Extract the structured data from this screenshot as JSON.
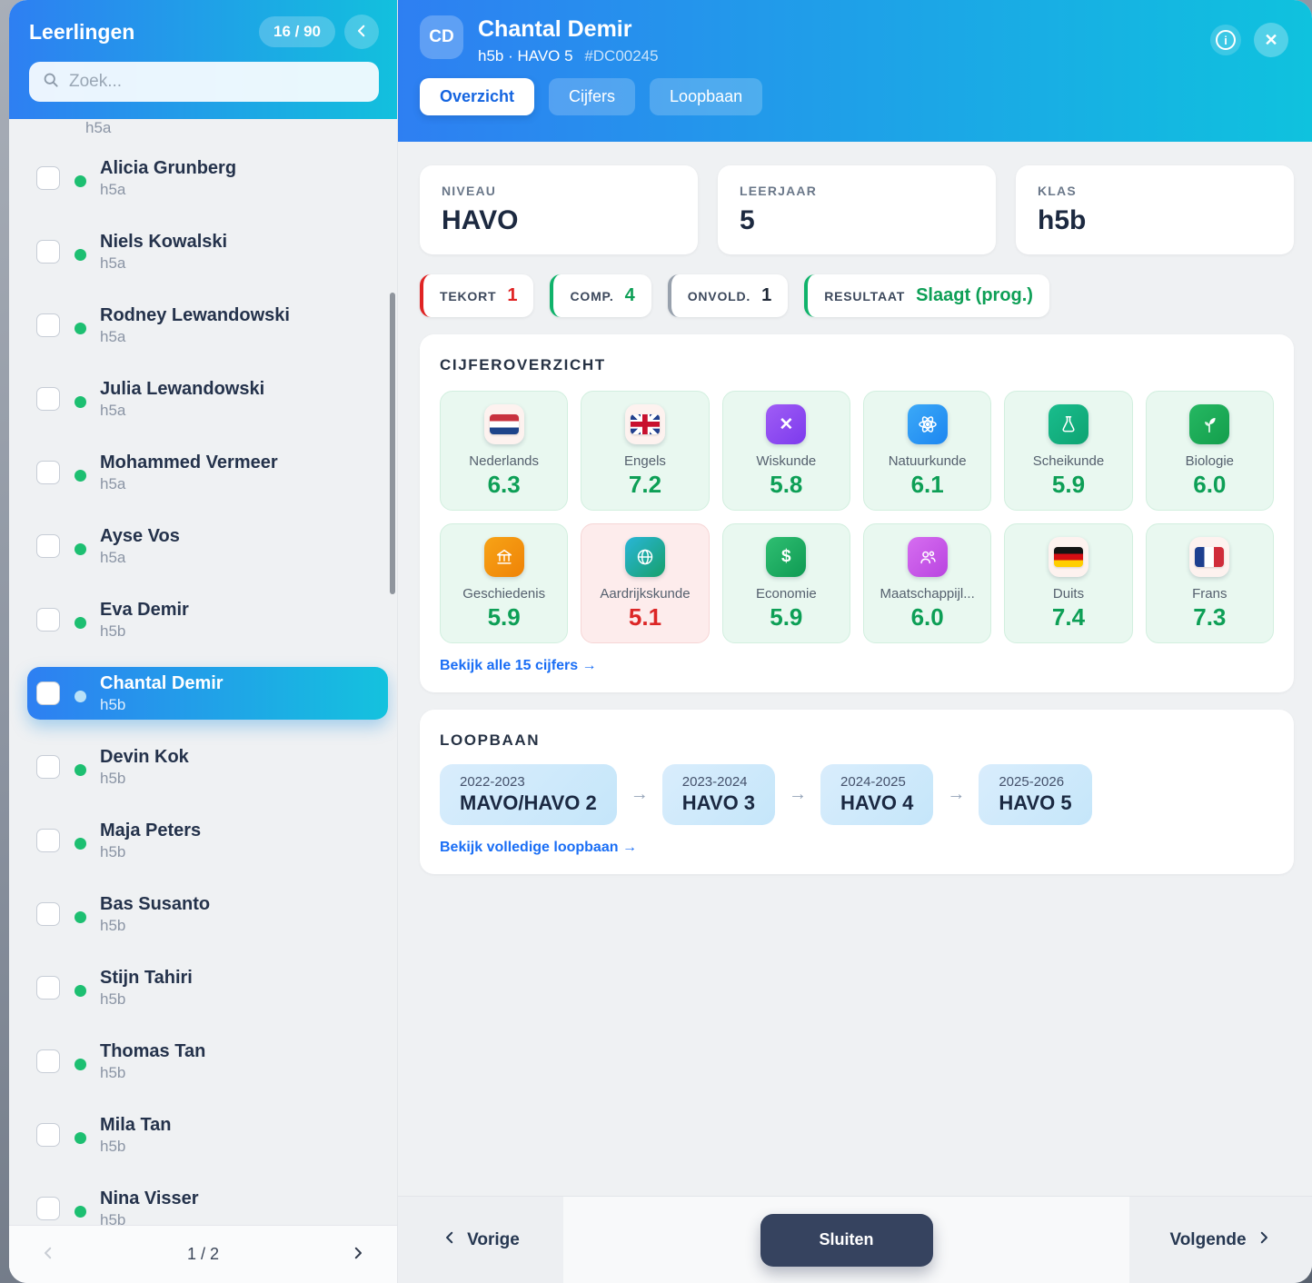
{
  "sidebar": {
    "title": "Leerlingen",
    "count": "16 / 90",
    "search_placeholder": "Zoek...",
    "partial_top_subtitle": "h5a",
    "students": [
      {
        "name": "Alicia Grunberg",
        "klas": "h5a",
        "selected": false
      },
      {
        "name": "Niels Kowalski",
        "klas": "h5a",
        "selected": false
      },
      {
        "name": "Rodney Lewandowski",
        "klas": "h5a",
        "selected": false
      },
      {
        "name": "Julia Lewandowski",
        "klas": "h5a",
        "selected": false
      },
      {
        "name": "Mohammed Vermeer",
        "klas": "h5a",
        "selected": false
      },
      {
        "name": "Ayse Vos",
        "klas": "h5a",
        "selected": false
      },
      {
        "name": "Eva Demir",
        "klas": "h5b",
        "selected": false
      },
      {
        "name": "Chantal Demir",
        "klas": "h5b",
        "selected": true
      },
      {
        "name": "Devin Kok",
        "klas": "h5b",
        "selected": false
      },
      {
        "name": "Maja Peters",
        "klas": "h5b",
        "selected": false
      },
      {
        "name": "Bas Susanto",
        "klas": "h5b",
        "selected": false
      },
      {
        "name": "Stijn Tahiri",
        "klas": "h5b",
        "selected": false
      },
      {
        "name": "Thomas Tan",
        "klas": "h5b",
        "selected": false
      },
      {
        "name": "Mila Tan",
        "klas": "h5b",
        "selected": false
      },
      {
        "name": "Nina Visser",
        "klas": "h5b",
        "selected": false
      }
    ],
    "pagination": "1 / 2"
  },
  "header": {
    "avatar_initials": "CD",
    "name": "Chantal Demir",
    "subtitle": "h5b · HAVO 5",
    "student_id": "#DC00245",
    "tabs": [
      {
        "label": "Overzicht",
        "active": true
      },
      {
        "label": "Cijfers",
        "active": false
      },
      {
        "label": "Loopbaan",
        "active": false
      }
    ]
  },
  "info_cards": [
    {
      "label": "NIVEAU",
      "value": "HAVO"
    },
    {
      "label": "LEERJAAR",
      "value": "5"
    },
    {
      "label": "KLAS",
      "value": "h5b"
    }
  ],
  "badges": [
    {
      "label": "TEKORT",
      "value": "1",
      "accent": "#e02424",
      "value_color": "#e02424"
    },
    {
      "label": "COMP.",
      "value": "4",
      "accent": "#10b36b",
      "value_color": "#0d9f56"
    },
    {
      "label": "ONVOLD.",
      "value": "1",
      "accent": "#98a1ad",
      "value_color": "#1f2937"
    },
    {
      "label": "RESULTAAT",
      "value": "Slaagt (prog.)",
      "accent": "#10b36b",
      "value_color": "#0d9f56"
    }
  ],
  "grades": {
    "section_title": "CIJFEROVERZICHT",
    "link": "Bekijk alle 15 cijfers →",
    "subjects": [
      {
        "name": "Nederlands",
        "grade": "6.3",
        "icon": "flag-nl",
        "bg": "",
        "failing": false
      },
      {
        "name": "Engels",
        "grade": "7.2",
        "icon": "flag-uk",
        "bg": "",
        "failing": false
      },
      {
        "name": "Wiskunde",
        "grade": "5.8",
        "icon": "multiply",
        "bg": "linear-gradient(135deg,#a05df5,#7c3aed)",
        "failing": false
      },
      {
        "name": "Natuurkunde",
        "grade": "6.1",
        "icon": "atom",
        "bg": "linear-gradient(135deg,#3ba9f8,#1d86f0)",
        "failing": false
      },
      {
        "name": "Scheikunde",
        "grade": "5.9",
        "icon": "flask",
        "bg": "linear-gradient(135deg,#19bd8d,#0ea372)",
        "failing": false
      },
      {
        "name": "Biologie",
        "grade": "6.0",
        "icon": "leaf",
        "bg": "linear-gradient(135deg,#25b862,#149e4c)",
        "failing": false
      },
      {
        "name": "Geschiedenis",
        "grade": "5.9",
        "icon": "bank",
        "bg": "linear-gradient(135deg,#f7a316,#ef8307)",
        "failing": false
      },
      {
        "name": "Aardrijkskunde",
        "grade": "5.1",
        "icon": "globe",
        "bg": "linear-gradient(135deg,#29b6d8,#17a06b)",
        "failing": true
      },
      {
        "name": "Economie",
        "grade": "5.9",
        "icon": "dollar",
        "bg": "linear-gradient(135deg,#2fbf72,#0f9a53)",
        "failing": false
      },
      {
        "name": "Maatschappijl...",
        "grade": "6.0",
        "icon": "people",
        "bg": "linear-gradient(135deg,#d66ef0,#b944e0)",
        "failing": false
      },
      {
        "name": "Duits",
        "grade": "7.4",
        "icon": "flag-de",
        "bg": "",
        "failing": false
      },
      {
        "name": "Frans",
        "grade": "7.3",
        "icon": "flag-fr",
        "bg": "",
        "failing": false
      }
    ]
  },
  "career": {
    "section_title": "LOOPBAAN",
    "link": "Bekijk volledige loopbaan →",
    "steps": [
      {
        "years": "2022-2023",
        "label": "MAVO/HAVO 2"
      },
      {
        "years": "2023-2024",
        "label": "HAVO 3"
      },
      {
        "years": "2024-2025",
        "label": "HAVO 4"
      },
      {
        "years": "2025-2026",
        "label": "HAVO 5"
      }
    ]
  },
  "footer": {
    "prev": "Vorige",
    "close": "Sluiten",
    "next": "Volgende"
  },
  "colors": {
    "header_gradient_start": "#2e7ff2",
    "header_gradient_end": "#12c0dd",
    "grade_pass": "#0d9f56",
    "grade_fail": "#dc2626",
    "link_blue": "#1a6ef5"
  }
}
